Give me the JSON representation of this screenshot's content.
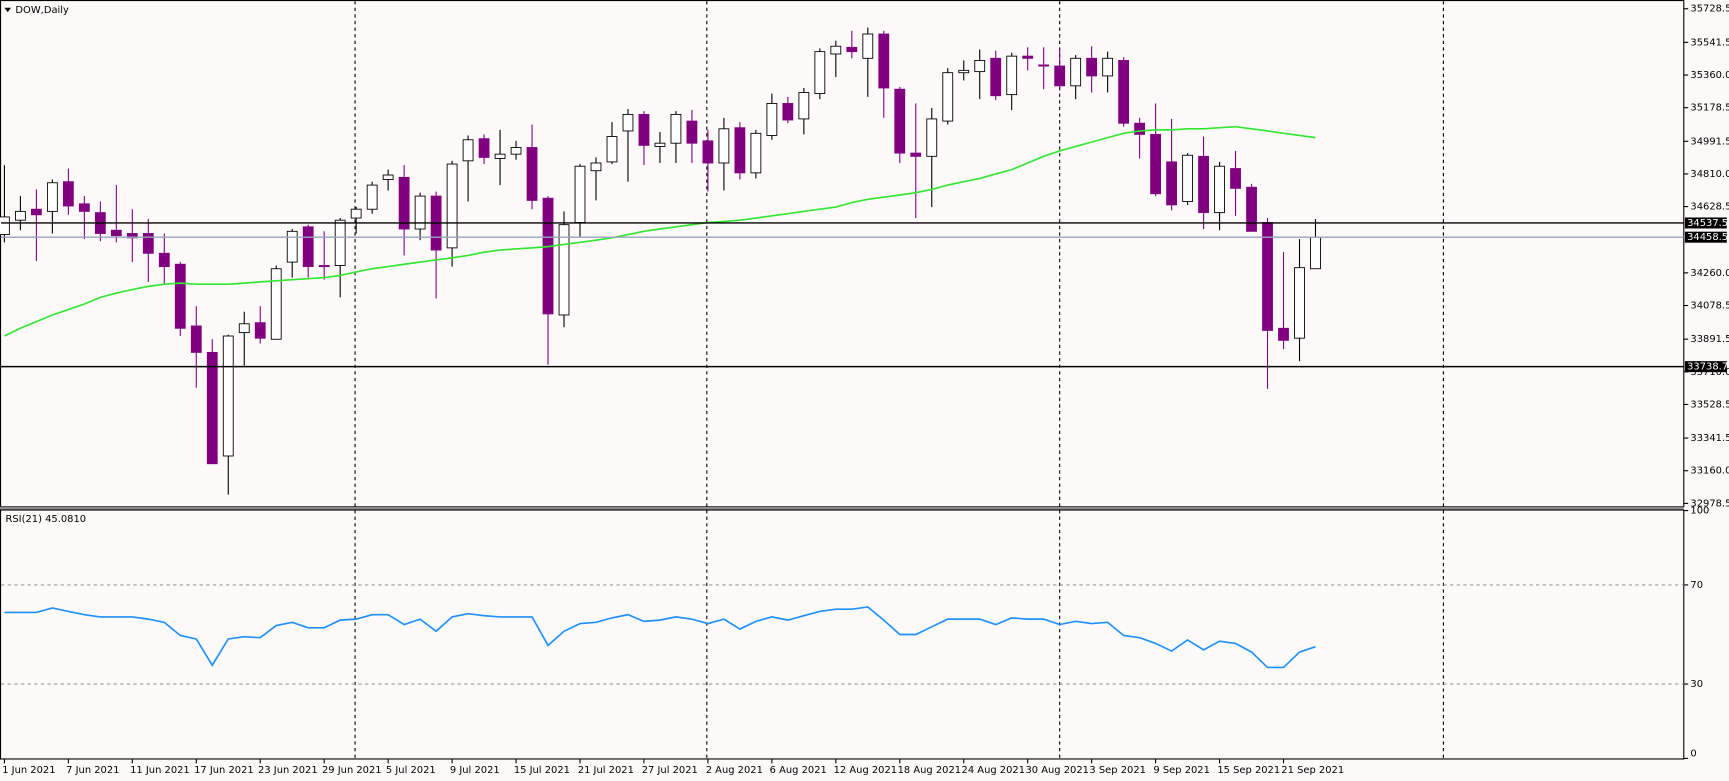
{
  "chart_data": [
    {
      "type": "candlestick",
      "title": "DOW,Daily",
      "categories": [
        "1 Jun 2021",
        null,
        null,
        null,
        "7 Jun 2021",
        null,
        null,
        null,
        "11 Jun 2021",
        null,
        null,
        null,
        "17 Jun 2021",
        null,
        null,
        null,
        "23 Jun 2021",
        null,
        null,
        null,
        "29 Jun 2021",
        null,
        null,
        null,
        "5 Jul 2021",
        null,
        null,
        null,
        "9 Jul 2021",
        null,
        null,
        null,
        "15 Jul 2021",
        null,
        null,
        null,
        "21 Jul 2021",
        null,
        null,
        null,
        "27 Jul 2021",
        null,
        null,
        null,
        "2 Aug 2021",
        null,
        null,
        null,
        "6 Aug 2021",
        null,
        null,
        null,
        "12 Aug 2021",
        null,
        null,
        null,
        "18 Aug 2021",
        null,
        null,
        null,
        "24 Aug 2021",
        null,
        null,
        null,
        "30 Aug 2021",
        null,
        null,
        null,
        "3 Sep 2021",
        null,
        null,
        null,
        "9 Sep 2021",
        null,
        null,
        null,
        "15 Sep 2021",
        null,
        null,
        null,
        "21 Sep 2021",
        null,
        null
      ],
      "open": [
        34473,
        34553,
        34614,
        34602,
        34767,
        34644,
        34595,
        34497,
        34479,
        34479,
        34369,
        34308,
        33965,
        33818,
        33242,
        33928,
        33983,
        33891,
        34320,
        34516,
        34301,
        34301,
        34565,
        34614,
        34779,
        34791,
        34504,
        34687,
        34399,
        34883,
        35006,
        34896,
        34920,
        34957,
        34675,
        34026,
        34540,
        34828,
        34877,
        35049,
        35141,
        34963,
        34981,
        35104,
        34994,
        34871,
        35067,
        34816,
        35024,
        35202,
        35116,
        35257,
        35477,
        35514,
        35453,
        35588,
        35281,
        34926,
        34908,
        35104,
        35373,
        35379,
        35453,
        35251,
        35465,
        35416,
        35410,
        35300,
        35453,
        35355,
        35441,
        35092,
        35030,
        34877,
        34657,
        34908,
        34595,
        34840,
        34736,
        34540,
        33952,
        33897,
        34283
      ],
      "high": [
        34859,
        34687,
        34724,
        34779,
        34840,
        34687,
        34657,
        34748,
        34614,
        34559,
        34479,
        34320,
        34075,
        33891,
        33916,
        34044,
        34075,
        34301,
        34504,
        34528,
        34491,
        34565,
        34626,
        34767,
        34834,
        34859,
        34706,
        34712,
        34883,
        35024,
        35030,
        35055,
        34994,
        35085,
        34687,
        34602,
        34865,
        34902,
        35098,
        35171,
        35159,
        35043,
        35159,
        35165,
        35055,
        35122,
        35098,
        35055,
        35257,
        35239,
        35288,
        35508,
        35551,
        35606,
        35624,
        35606,
        35294,
        35202,
        35177,
        35398,
        35441,
        35502,
        35496,
        35484,
        35514,
        35514,
        35508,
        35471,
        35520,
        35490,
        35459,
        35122,
        35202,
        35116,
        34926,
        35018,
        34877,
        34938,
        34755,
        34565,
        34375,
        34448,
        34559
      ],
      "low": [
        34430,
        34497,
        34326,
        34479,
        34583,
        34448,
        34436,
        34430,
        34320,
        34210,
        34197,
        33909,
        33622,
        33199,
        33027,
        33744,
        33867,
        33891,
        34234,
        34234,
        34222,
        34124,
        34479,
        34589,
        34718,
        34357,
        34442,
        34118,
        34295,
        34657,
        34865,
        34748,
        34889,
        34614,
        33750,
        33958,
        34461,
        34663,
        34865,
        34767,
        34859,
        34871,
        34871,
        34871,
        34712,
        34718,
        34779,
        34785,
        35000,
        35092,
        35030,
        35226,
        35349,
        35453,
        35239,
        35122,
        34871,
        34565,
        34626,
        35085,
        35330,
        35226,
        35220,
        35165,
        35386,
        35281,
        35275,
        35226,
        35263,
        35263,
        35073,
        34896,
        34687,
        34608,
        34638,
        34504,
        34497,
        34577,
        34491,
        33615,
        33836,
        33769,
        34283
      ],
      "close": [
        34571,
        34602,
        34583,
        34761,
        34632,
        34602,
        34479,
        34467,
        34455,
        34369,
        34295,
        33952,
        33818,
        33199,
        33909,
        33977,
        33897,
        34283,
        34491,
        34295,
        34295,
        34553,
        34614,
        34748,
        34804,
        34504,
        34687,
        34387,
        34865,
        35000,
        34902,
        34920,
        34957,
        34663,
        34032,
        34528,
        34853,
        34871,
        35018,
        35141,
        34969,
        34981,
        35141,
        34981,
        34871,
        35061,
        34816,
        35036,
        35202,
        35110,
        35263,
        35490,
        35520,
        35490,
        35588,
        35288,
        34926,
        34908,
        35116,
        35373,
        35386,
        35441,
        35245,
        35465,
        35453,
        35410,
        35300,
        35453,
        35355,
        35453,
        35092,
        35030,
        34700,
        34638,
        34914,
        34595,
        34853,
        34730,
        34491,
        33940,
        33885,
        34289,
        34458.5
      ],
      "colors": {
        "up": "#ffffff",
        "down": "#800080"
      },
      "ma": {
        "color": "#32e632",
        "values": [
          33909,
          33952,
          33989,
          34026,
          34056,
          34087,
          34124,
          34148,
          34167,
          34185,
          34197,
          34203,
          34197,
          34197,
          34197,
          34203,
          34210,
          34216,
          34222,
          34228,
          34234,
          34246,
          34265,
          34283,
          34295,
          34308,
          34320,
          34332,
          34344,
          34357,
          34375,
          34387,
          34393,
          34399,
          34406,
          34418,
          34430,
          34442,
          34455,
          34473,
          34491,
          34504,
          34516,
          34528,
          34540,
          34546,
          34553,
          34565,
          34577,
          34589,
          34602,
          34614,
          34626,
          34651,
          34669,
          34681,
          34693,
          34706,
          34724,
          34748,
          34767,
          34785,
          34810,
          34834,
          34871,
          34908,
          34938,
          34963,
          34987,
          35012,
          35036,
          35049,
          35055,
          35055,
          35061,
          35061,
          35067,
          35073,
          35061,
          35049,
          35036,
          35024,
          35012
        ]
      },
      "hlines": [
        34537.5,
        33738.7
      ],
      "last_price": 34458.5,
      "ylim": [
        32960,
        35771
      ],
      "yticks": [
        35728.5,
        35541.5,
        {
          "value": 35360,
          "label": "35360.0"
        },
        35178.5,
        34991.5,
        {
          "value": 34810,
          "label": "34810.0"
        },
        34628.5,
        {
          "value": 34260,
          "label": "34260.0"
        },
        34078.5,
        33891.5,
        {
          "value": 33710,
          "label": "33710.0"
        },
        33528.5,
        33341.5,
        {
          "value": 33160,
          "label": "33160.0"
        },
        32978.5
      ]
    },
    {
      "type": "line",
      "title": "RSI(21) 45.0810",
      "color": "#1e90ff",
      "values": [
        58.9,
        58.9,
        58.9,
        60.7,
        59.3,
        58.0,
        57.1,
        57.1,
        57.1,
        56.2,
        54.9,
        49.6,
        48.2,
        37.6,
        48.2,
        49.1,
        48.7,
        53.6,
        54.9,
        52.7,
        52.7,
        55.8,
        56.2,
        58.0,
        58.0,
        54.0,
        56.2,
        51.3,
        57.1,
        58.4,
        57.6,
        57.1,
        57.1,
        57.1,
        45.6,
        51.3,
        54.4,
        54.9,
        56.7,
        58.0,
        55.3,
        55.8,
        57.1,
        56.2,
        54.4,
        56.2,
        52.2,
        55.3,
        57.1,
        55.8,
        57.6,
        59.3,
        60.2,
        60.2,
        61.1,
        55.8,
        50.0,
        50.0,
        53.1,
        56.2,
        56.2,
        56.2,
        54.0,
        56.7,
        56.2,
        56.2,
        54.0,
        55.3,
        54.4,
        54.9,
        49.6,
        48.7,
        46.4,
        43.3,
        47.8,
        43.8,
        47.3,
        46.4,
        42.9,
        36.7,
        36.7,
        42.9,
        45.081
      ],
      "ylim": [
        0,
        100
      ],
      "yticks": [
        0,
        30,
        70,
        100
      ]
    }
  ]
}
